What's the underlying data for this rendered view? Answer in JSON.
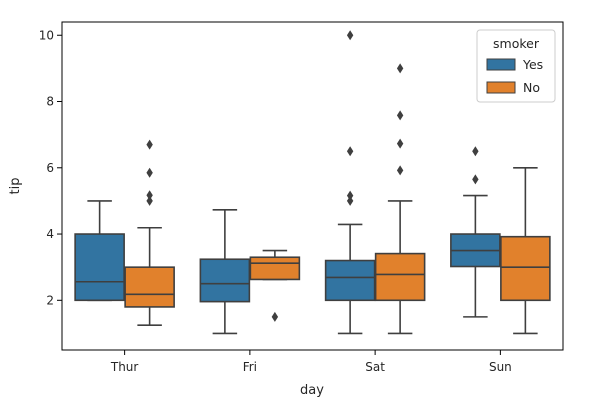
{
  "chart_data": {
    "type": "box",
    "title": "",
    "xlabel": "day",
    "ylabel": "tip",
    "categories": [
      "Thur",
      "Fri",
      "Sat",
      "Sun"
    ],
    "ylim": [
      0.5,
      10.4
    ],
    "yticks": [
      2,
      4,
      6,
      8,
      10
    ],
    "grid": false,
    "legend": {
      "title": "smoker",
      "placement": "top-right"
    },
    "series": [
      {
        "name": "Yes",
        "color": "#3274a1",
        "boxes": [
          {
            "whislo": 2.0,
            "q1": 2.0,
            "med": 2.56,
            "q3": 4.0,
            "whishi": 5.0,
            "fliers": []
          },
          {
            "whislo": 1.0,
            "q1": 1.96,
            "med": 2.5,
            "q3": 3.24,
            "whishi": 4.73,
            "fliers": []
          },
          {
            "whislo": 1.0,
            "q1": 2.0,
            "med": 2.69,
            "q3": 3.2,
            "whishi": 4.29,
            "fliers": [
              5.0,
              5.16,
              6.5,
              10.0
            ]
          },
          {
            "whislo": 1.5,
            "q1": 3.02,
            "med": 3.5,
            "q3": 4.0,
            "whishi": 5.16,
            "fliers": [
              5.65,
              6.5
            ]
          }
        ]
      },
      {
        "name": "No",
        "color": "#e1812c",
        "boxes": [
          {
            "whislo": 1.25,
            "q1": 1.8,
            "med": 2.18,
            "q3": 3.0,
            "whishi": 4.19,
            "fliers": [
              5.0,
              5.17,
              5.85,
              6.7
            ]
          },
          {
            "whislo": 2.63,
            "q1": 2.63,
            "med": 3.12,
            "q3": 3.3,
            "whishi": 3.5,
            "fliers": [
              1.5
            ]
          },
          {
            "whislo": 1.0,
            "q1": 2.0,
            "med": 2.78,
            "q3": 3.41,
            "whishi": 5.0,
            "fliers": [
              5.92,
              6.73,
              7.58,
              9.0
            ]
          },
          {
            "whislo": 1.0,
            "q1": 2.0,
            "med": 3.0,
            "q3": 3.92,
            "whishi": 6.0,
            "fliers": []
          }
        ]
      }
    ]
  }
}
